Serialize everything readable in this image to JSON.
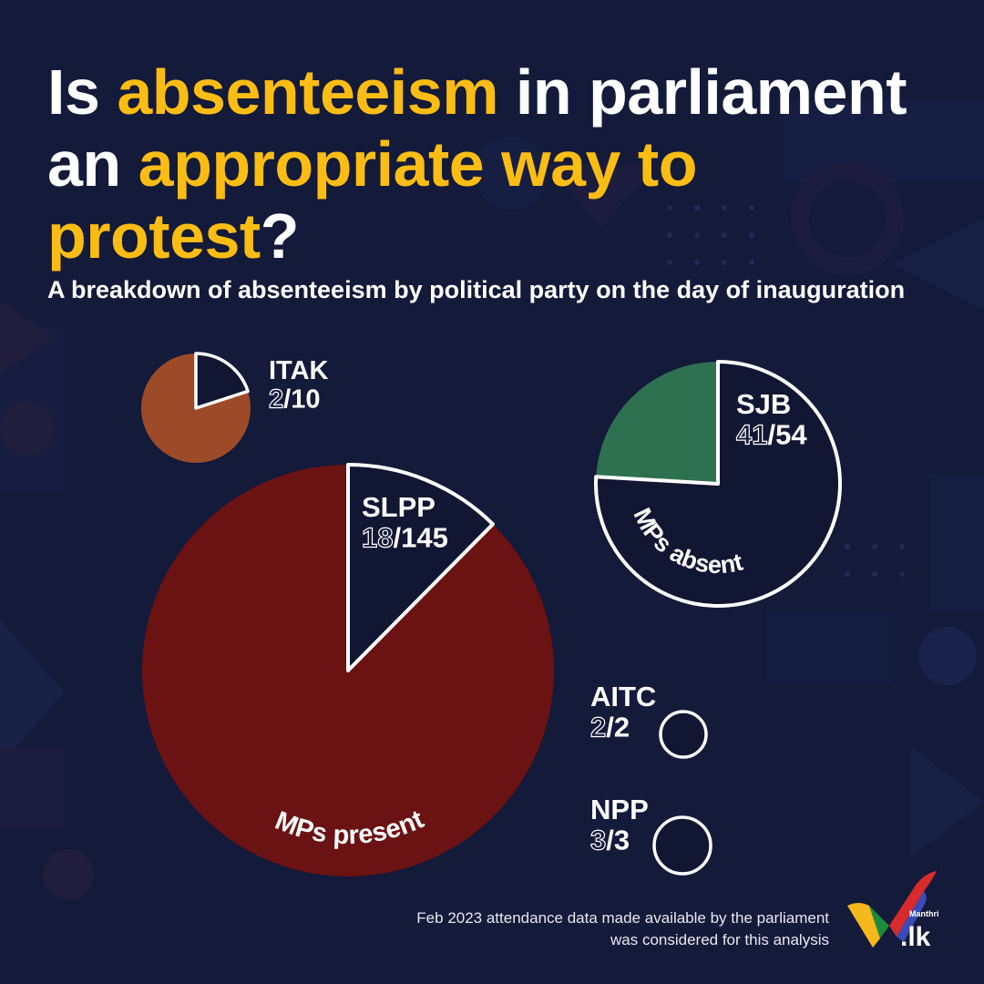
{
  "header": {
    "title_parts": [
      {
        "text": "Is ",
        "highlight": false
      },
      {
        "text": "absenteeism",
        "highlight": true
      },
      {
        "text": " in parliament an ",
        "highlight": false
      },
      {
        "text": "appropriate way to protest",
        "highlight": true
      },
      {
        "text": "?",
        "highlight": false
      }
    ],
    "subtitle": "A breakdown of absenteeism by political party on the day of inauguration"
  },
  "colors": {
    "background": "#131a3a",
    "highlight": "#fbbd13",
    "absent_fill": "#111633",
    "slpp_present": "#6b1213",
    "itak_present": "#9c4a28",
    "sjb_present": "#2e7150"
  },
  "chart_data": {
    "type": "pie",
    "title": "A breakdown of absenteeism by political party on the day of inauguration",
    "slice_labels": {
      "absent": "MPs absent",
      "present": "MPs present"
    },
    "parties": [
      {
        "id": "itak",
        "name": "ITAK",
        "absent": 2,
        "total": 10,
        "color": "#9c4a28"
      },
      {
        "id": "slpp",
        "name": "SLPP",
        "absent": 18,
        "total": 145,
        "color": "#6b1213"
      },
      {
        "id": "sjb",
        "name": "SJB",
        "absent": 41,
        "total": 54,
        "color": "#2e7150"
      },
      {
        "id": "aitc",
        "name": "AITC",
        "absent": 2,
        "total": 2,
        "color": "#111633"
      },
      {
        "id": "npp",
        "name": "NPP",
        "absent": 3,
        "total": 3,
        "color": "#111633"
      }
    ]
  },
  "footer": {
    "note": "Feb 2023 attendance data made available by the parliament was considered for this analysis",
    "logo_small": "Manthri",
    "logo_main": ".lk"
  }
}
